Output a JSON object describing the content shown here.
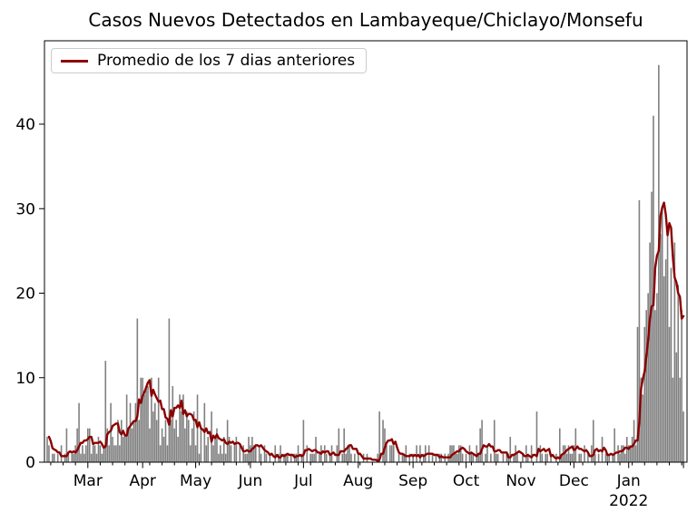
{
  "chart_data": {
    "type": "bar",
    "title": "Casos Nuevos Detectados en Lambayeque/Chiclayo/Monsefu",
    "legend": {
      "line_label": "Promedio de los 7 dias anteriores"
    },
    "line_rule": "mean_of_previous_7_days",
    "grid": false,
    "legend_position": "upper left",
    "colors": {
      "bars": "#808080",
      "line": "#8b0000",
      "axes": "#000000",
      "background": "#ffffff"
    },
    "ylim": [
      0,
      49.8
    ],
    "y_ticks": [
      0,
      10,
      20,
      30,
      40
    ],
    "x_ticks": [
      {
        "label": "Mar",
        "day": 23
      },
      {
        "label": "Apr",
        "day": 54
      },
      {
        "label": "May",
        "day": 84
      },
      {
        "label": "Jun",
        "day": 115
      },
      {
        "label": "Jul",
        "day": 145
      },
      {
        "label": "Aug",
        "day": 176
      },
      {
        "label": "Sep",
        "day": 207
      },
      {
        "label": "Oct",
        "day": 237
      },
      {
        "label": "Nov",
        "day": 268
      },
      {
        "label": "Dec",
        "day": 298
      },
      {
        "label": "Jan",
        "day": 329,
        "sublabel": "2022"
      },
      {
        "label": "",
        "day": 360
      }
    ],
    "minor_ticks": {
      "start_day": 2,
      "every_days": 7
    },
    "values": [
      3,
      2,
      0,
      1,
      1,
      0,
      1,
      0,
      2,
      0,
      1,
      4,
      1,
      0,
      1,
      1,
      2,
      4,
      7,
      1,
      2,
      1,
      2,
      4,
      4,
      1,
      2,
      2,
      1,
      3,
      2,
      1,
      2,
      12,
      4,
      2,
      7,
      3,
      2,
      2,
      5,
      2,
      5,
      3,
      3,
      8,
      4,
      7,
      4,
      5,
      7,
      17,
      5,
      10,
      10,
      8,
      9,
      9,
      4,
      10,
      6,
      7,
      5,
      10,
      2,
      4,
      3,
      5,
      2,
      17,
      5,
      9,
      4,
      5,
      3,
      8,
      6,
      8,
      4,
      6,
      5,
      2,
      4,
      6,
      2,
      8,
      1,
      4,
      0,
      7,
      2,
      3,
      0,
      6,
      2,
      3,
      4,
      1,
      2,
      1,
      3,
      1,
      5,
      3,
      2,
      0,
      2,
      3,
      0,
      2,
      0,
      2,
      1,
      1,
      3,
      2,
      3,
      2,
      2,
      0,
      2,
      1,
      0,
      2,
      1,
      0,
      1,
      0,
      0,
      2,
      0,
      1,
      2,
      0,
      1,
      1,
      1,
      0,
      1,
      0,
      1,
      1,
      2,
      0,
      1,
      5,
      0,
      2,
      0,
      1,
      1,
      1,
      3,
      0,
      1,
      2,
      0,
      2,
      1,
      0,
      1,
      2,
      0,
      0,
      2,
      4,
      0,
      1,
      4,
      1,
      2,
      2,
      1,
      0,
      1,
      0,
      1,
      0,
      0,
      1,
      0,
      1,
      0,
      0,
      0,
      0,
      0,
      1,
      6,
      0,
      5,
      4,
      2,
      0,
      2,
      2,
      2,
      0,
      0,
      1,
      0,
      1,
      1,
      2,
      0,
      1,
      0,
      1,
      0,
      2,
      0,
      2,
      0,
      1,
      2,
      0,
      2,
      0,
      1,
      0,
      1,
      0,
      1,
      1,
      0,
      1,
      0,
      1,
      2,
      2,
      2,
      1,
      1,
      2,
      2,
      1,
      0,
      1,
      0,
      2,
      1,
      1,
      0,
      2,
      1,
      4,
      5,
      0,
      1,
      2,
      0,
      1,
      0,
      5,
      1,
      1,
      0,
      0,
      1,
      0,
      1,
      1,
      3,
      0,
      1,
      2,
      1,
      0,
      0,
      1,
      0,
      2,
      1,
      0,
      2,
      0,
      0,
      6,
      0,
      2,
      1,
      0,
      1,
      1,
      0,
      1,
      0,
      0,
      1,
      0,
      4,
      1,
      2,
      2,
      1,
      2,
      1,
      1,
      2,
      4,
      0,
      1,
      1,
      0,
      2,
      0,
      1,
      0,
      2,
      5,
      1,
      0,
      1,
      0,
      3,
      0,
      1,
      1,
      1,
      0,
      1,
      4,
      0,
      2,
      1,
      2,
      2,
      1,
      3,
      2,
      2,
      3,
      5,
      2,
      16,
      31,
      10,
      8,
      16,
      18,
      20,
      26,
      32,
      41,
      18,
      20,
      47,
      27,
      30,
      22,
      24,
      28,
      16,
      23,
      10,
      26,
      13,
      21,
      10,
      18,
      6
    ]
  }
}
